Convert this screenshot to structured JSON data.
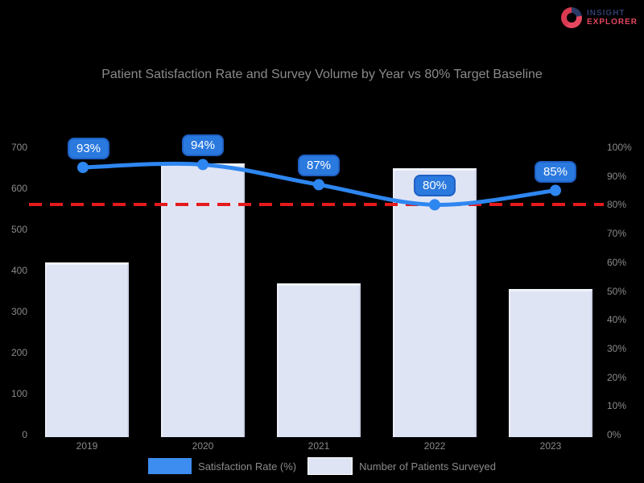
{
  "logo": {
    "line1": "INSIGHT",
    "line2": "EXPLORER"
  },
  "title": "Patient Satisfaction Rate and Survey Volume by Year vs 80% Target Baseline",
  "legend": [
    {
      "label": "Satisfaction Rate (%)",
      "color": "#3d8cf0"
    },
    {
      "label": "Number of Patients Surveyed",
      "color": "#dfe4f4"
    }
  ],
  "chart_data": {
    "type": "combo",
    "categories": [
      "2019",
      "2020",
      "2021",
      "2022",
      "2023"
    ],
    "series": [
      {
        "name": "Satisfaction Rate (%)",
        "type": "line",
        "axis": "right",
        "values": [
          93,
          94,
          87,
          80,
          85
        ],
        "color": "#2e86f0"
      },
      {
        "name": "Number of Patients Surveyed",
        "type": "bar",
        "axis": "left",
        "values": [
          420,
          660,
          370,
          650,
          355
        ],
        "color": "#dfe4f4"
      }
    ],
    "point_labels": [
      "93%",
      "94%",
      "87%",
      "80%",
      "85%"
    ],
    "left_axis": {
      "min": 0,
      "max": 700,
      "ticks": [
        "700",
        "600",
        "500",
        "400",
        "300",
        "200",
        "100",
        "0"
      ]
    },
    "right_axis": {
      "min": 0,
      "max": 100,
      "ticks": [
        "100%",
        "90%",
        "80%",
        "70%",
        "60%",
        "50%",
        "40%",
        "30%",
        "20%",
        "10%",
        "0%"
      ]
    },
    "target_line": {
      "value": 80,
      "color": "#e41a1c",
      "style": "dashed"
    },
    "grid": false,
    "legend_position": "bottom"
  }
}
